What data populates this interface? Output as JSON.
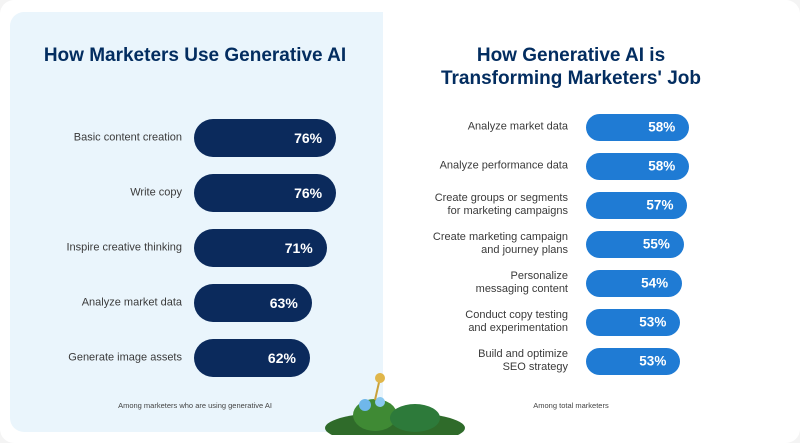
{
  "chart_data": [
    {
      "type": "bar",
      "orientation": "horizontal",
      "title": "How Marketers Use Generative AI",
      "categories": [
        "Basic content creation",
        "Write copy",
        "Inspire creative thinking",
        "Analyze market data",
        "Generate image assets"
      ],
      "values": [
        76,
        76,
        71,
        63,
        62
      ],
      "value_labels": [
        "76%",
        "76%",
        "71%",
        "63%",
        "62%"
      ],
      "color": "#0b2a5c",
      "note": "Among marketers who are using generative AI"
    },
    {
      "type": "bar",
      "orientation": "horizontal",
      "title": "How Generative AI is\nTransforming Marketers' Job",
      "categories": [
        "Analyze market data",
        "Analyze performance data",
        "Create groups or segments\nfor marketing campaigns",
        "Create marketing campaign\nand journey plans",
        "Personalize\nmessaging content",
        "Conduct copy testing\nand experimentation",
        "Build and optimize\nSEO strategy"
      ],
      "values": [
        58,
        58,
        57,
        55,
        54,
        53,
        53
      ],
      "value_labels": [
        "58%",
        "58%",
        "57%",
        "55%",
        "54%",
        "53%",
        "53%"
      ],
      "color": "#1f7bd4",
      "note": "Among total marketers"
    }
  ]
}
